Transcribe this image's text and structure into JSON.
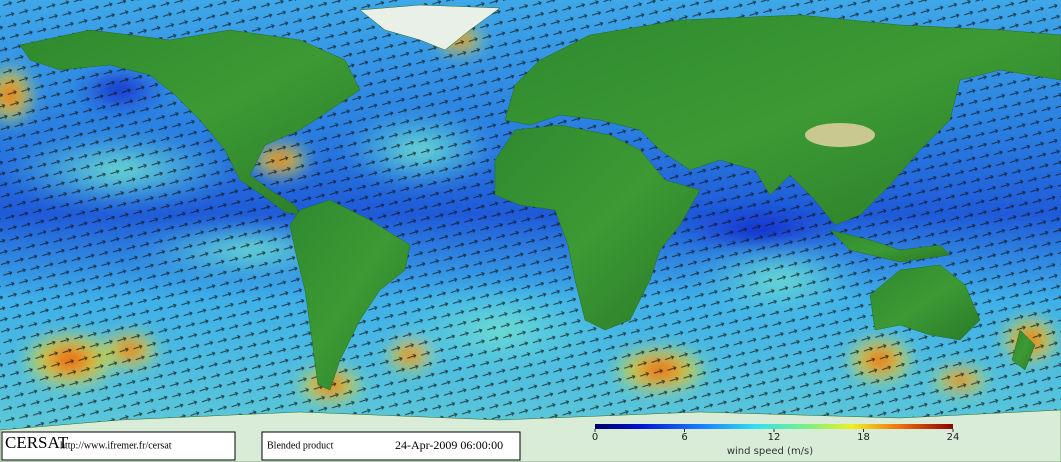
{
  "footer": {
    "organization": "CERSAT",
    "url": "http://www.ifremer.fr/cersat",
    "product": "Blended product",
    "datetime": "24-Apr-2009 06:00:00"
  },
  "colorbar": {
    "label": "wind speed (m/s)",
    "lim": [
      0,
      24
    ],
    "ticks": [
      0,
      6,
      12,
      18,
      24
    ]
  }
}
